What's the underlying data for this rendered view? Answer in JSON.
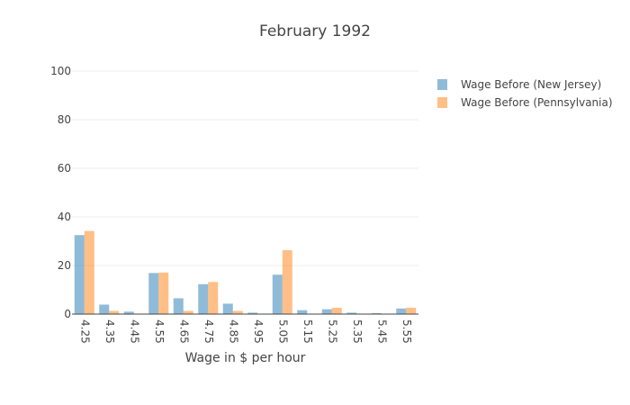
{
  "chart_data": {
    "type": "bar",
    "title": "February 1992",
    "xlabel": "Wage in $ per hour",
    "ylabel": "",
    "ylim": [
      0,
      100
    ],
    "yticks": [
      0,
      20,
      40,
      60,
      80,
      100
    ],
    "categories": [
      "4.25",
      "4.35",
      "4.45",
      "4.55",
      "4.65",
      "4.75",
      "4.85",
      "4.95",
      "5.05",
      "5.15",
      "5.25",
      "5.35",
      "5.45",
      "5.55"
    ],
    "series": [
      {
        "name": "Wage Before (New Jersey)",
        "color": "#1f77b4",
        "values": [
          32.5,
          3.9,
          1.0,
          16.9,
          6.5,
          12.3,
          4.3,
          0.6,
          16.2,
          1.6,
          2.0,
          0.6,
          0.4,
          2.3
        ]
      },
      {
        "name": "Wage Before (Pennsylvania)",
        "color": "#ff7f0e",
        "values": [
          34.2,
          1.3,
          0.0,
          17.1,
          1.3,
          13.2,
          1.3,
          0.0,
          26.3,
          0.0,
          2.6,
          0.0,
          0.0,
          2.6
        ]
      }
    ],
    "legend_position": "top-right",
    "grid": true
  }
}
